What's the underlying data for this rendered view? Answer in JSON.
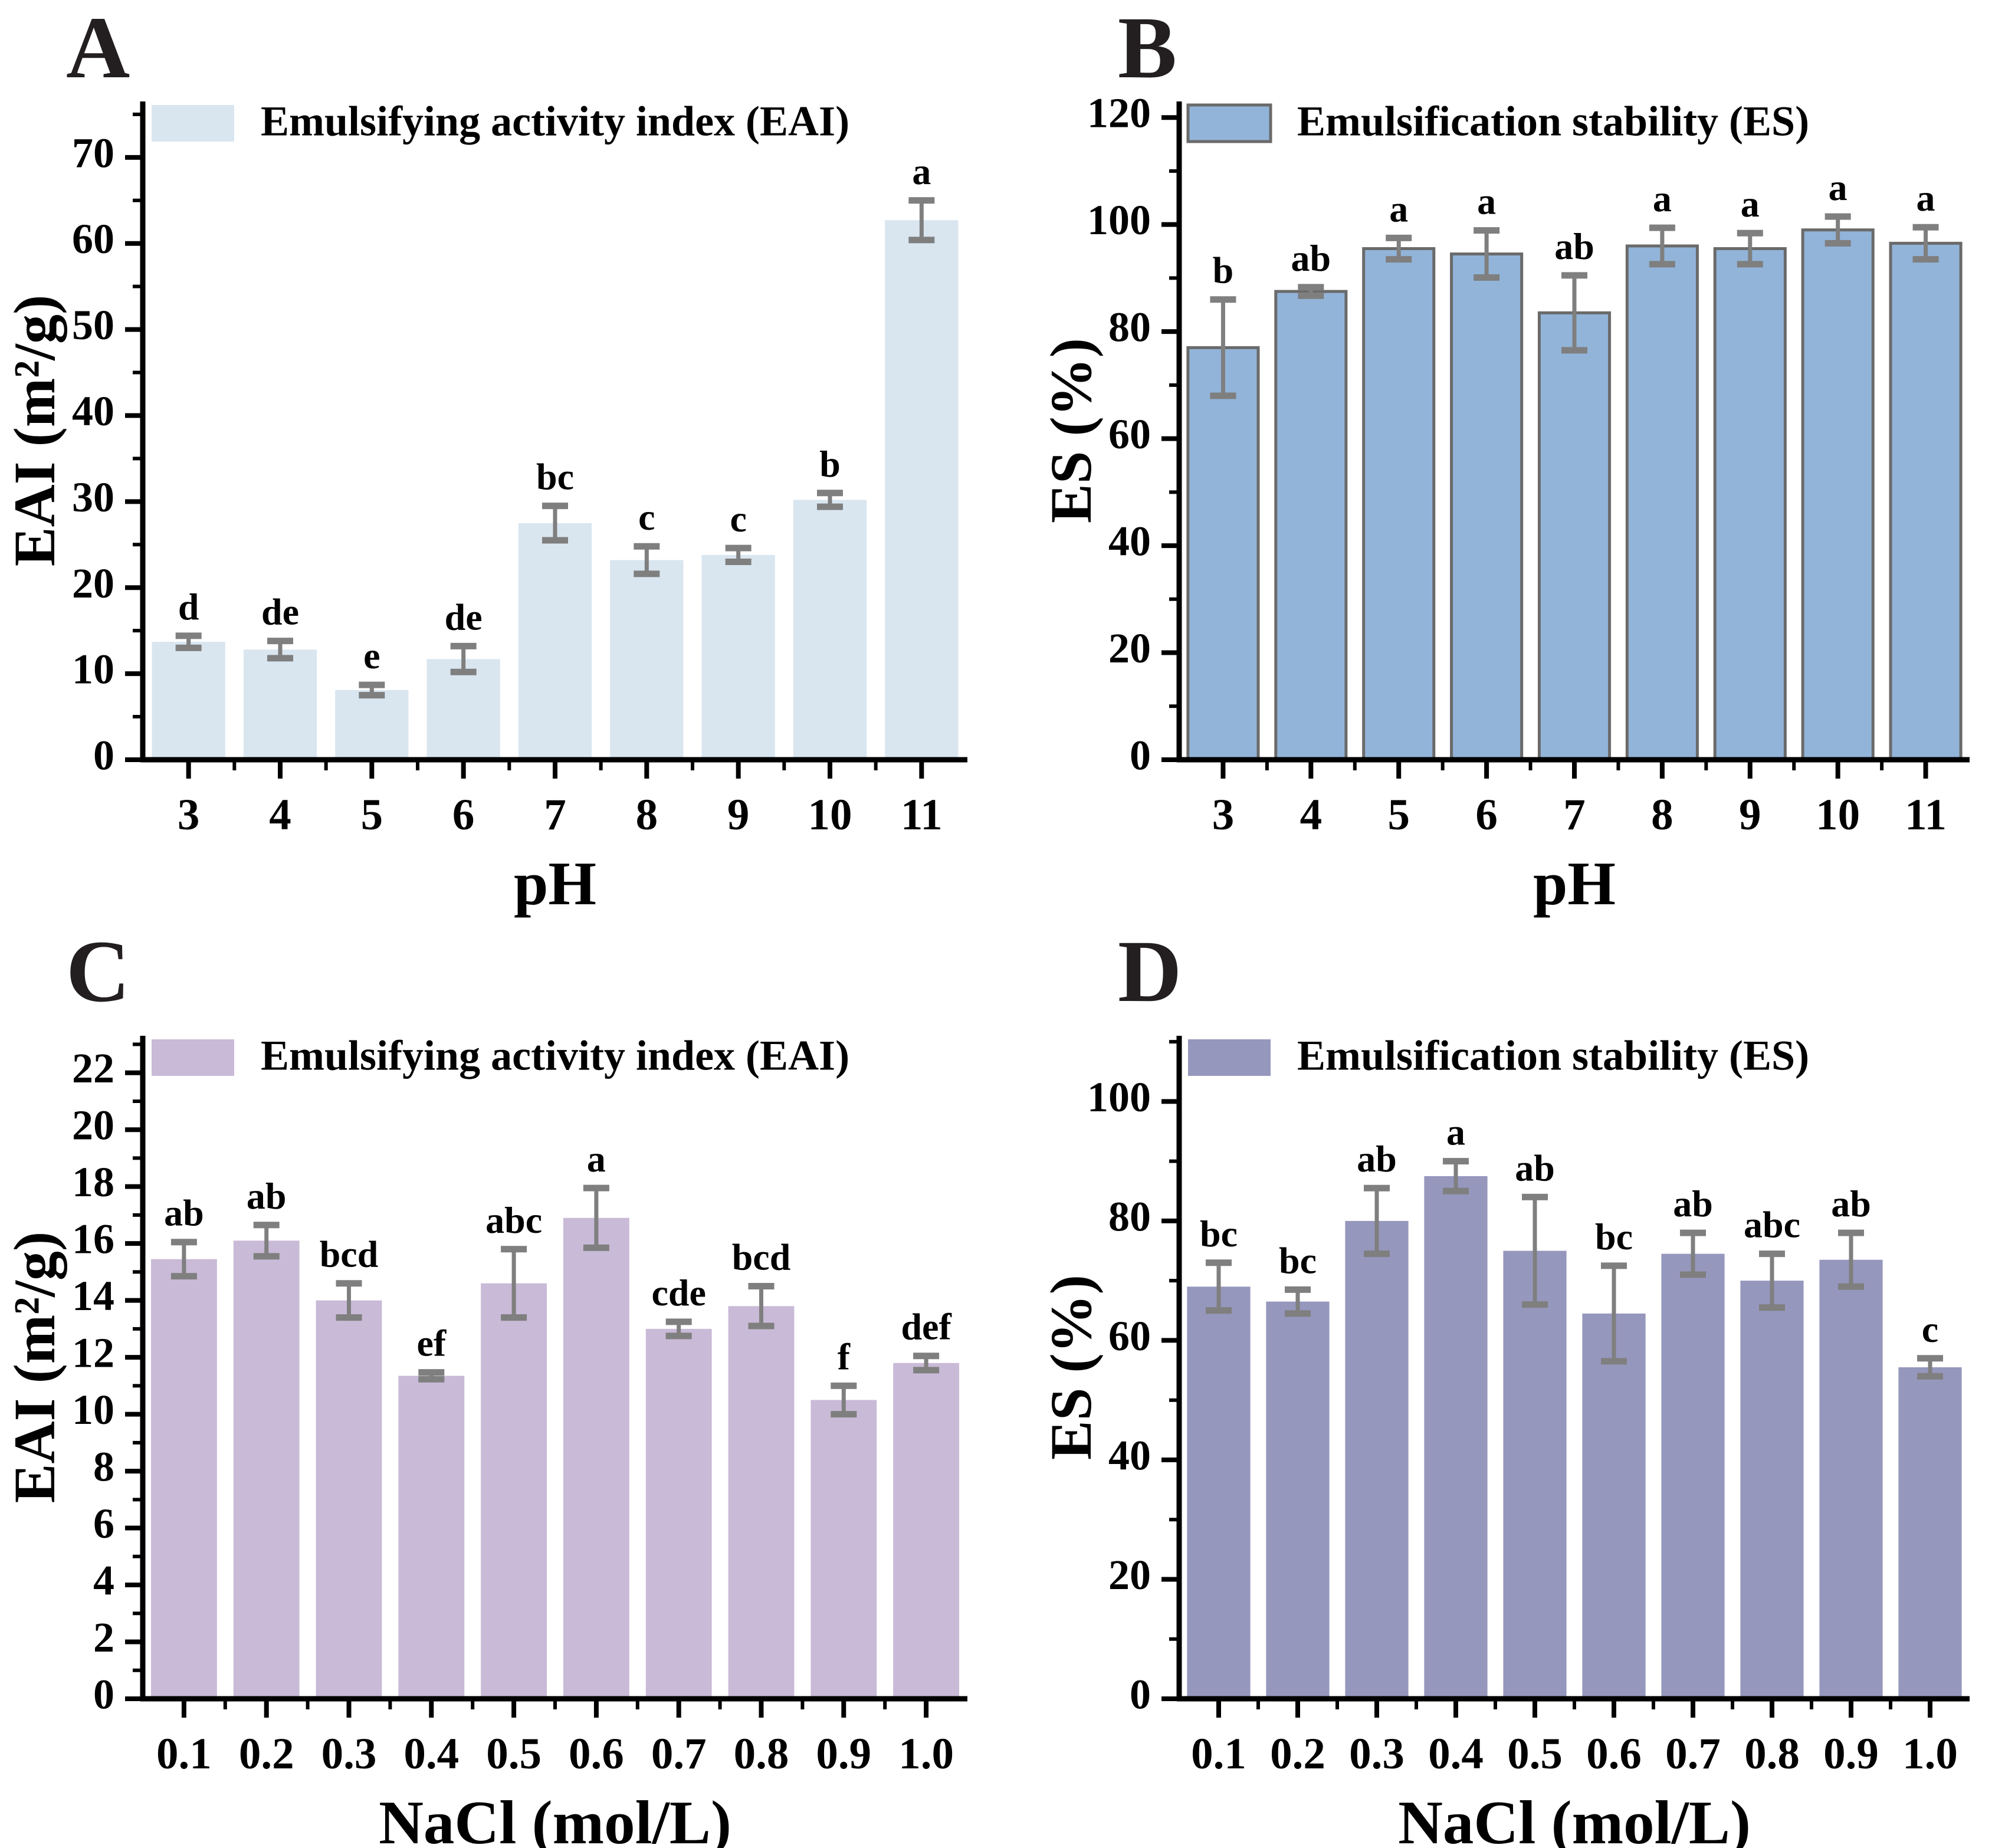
{
  "figure_background": "#ffffff",
  "error_bar_color": "#7f7f7f",
  "axis_color": "#000000",
  "chart_data": [
    {
      "type": "bar",
      "label": "A",
      "legend": "Emulsifying activity index (EAI)",
      "xlabel": "pH",
      "ylabel": "EAI (m²/g)",
      "bar_fill": "#d9e6f0",
      "bar_stroke": "none",
      "categories": [
        "3",
        "4",
        "5",
        "6",
        "7",
        "8",
        "9",
        "10",
        "11"
      ],
      "values": [
        13.7,
        12.8,
        8.1,
        11.7,
        27.5,
        23.2,
        23.8,
        30.2,
        62.7
      ],
      "errors": [
        0.7,
        1.0,
        0.6,
        1.5,
        2.0,
        1.6,
        0.8,
        0.8,
        2.3
      ],
      "sig_letters": [
        "d",
        "de",
        "e",
        "de",
        "bc",
        "c",
        "c",
        "b",
        "a"
      ],
      "ylim": [
        0,
        76.5
      ],
      "ytick_step": 10,
      "yminor_step": 5,
      "ytick_max": 70,
      "legend_border": "none",
      "grid": false,
      "legend_position": "top-left"
    },
    {
      "type": "bar",
      "label": "B",
      "legend": "Emulsification stability (ES)",
      "xlabel": "pH",
      "ylabel": "ES (%)",
      "bar_fill": "#92b4d9",
      "bar_stroke": "#6a6a6a",
      "categories": [
        "3",
        "4",
        "5",
        "6",
        "7",
        "8",
        "9",
        "10",
        "11"
      ],
      "values": [
        77,
        87.5,
        95.5,
        94.5,
        83.5,
        96,
        95.5,
        99,
        96.5
      ],
      "errors": [
        9,
        0.8,
        2,
        4.4,
        7,
        3.4,
        2.9,
        2.5,
        3
      ],
      "sig_letters": [
        "b",
        "ab",
        "a",
        "a",
        "ab",
        "a",
        "a",
        "a",
        "a"
      ],
      "ylim": [
        0,
        123
      ],
      "ytick_step": 20,
      "yminor_step": 10,
      "ytick_max": 120,
      "legend_border": "#6a6a6a",
      "grid": false,
      "legend_position": "top-left"
    },
    {
      "type": "bar",
      "label": "C",
      "legend": "Emulsifying activity index (EAI)",
      "xlabel": "NaCl (mol/L)",
      "ylabel": "EAI (m²/g)",
      "bar_fill": "#c9bad7",
      "bar_stroke": "none",
      "categories": [
        "0.1",
        "0.2",
        "0.3",
        "0.4",
        "0.5",
        "0.6",
        "0.7",
        "0.8",
        "0.9",
        "1.0"
      ],
      "values": [
        15.45,
        16.1,
        14.0,
        11.35,
        14.6,
        16.9,
        13.0,
        13.8,
        10.5,
        11.8
      ],
      "errors": [
        0.6,
        0.55,
        0.6,
        0.12,
        1.2,
        1.05,
        0.25,
        0.7,
        0.5,
        0.25
      ],
      "sig_letters": [
        "ab",
        "ab",
        "bcd",
        "ef",
        "abc",
        "a",
        "cde",
        "bcd",
        "f",
        "def"
      ],
      "ylim": [
        0,
        23.3
      ],
      "ytick_step": 2,
      "yminor_step": 1,
      "ytick_max": 22,
      "legend_border": "none",
      "grid": false,
      "legend_position": "top-left"
    },
    {
      "type": "bar",
      "label": "D",
      "legend": "Emulsification stability (ES)",
      "xlabel": "NaCl (mol/L)",
      "ylabel": "ES (%)",
      "bar_fill": "#9697bd",
      "bar_stroke": "none",
      "categories": [
        "0.1",
        "0.2",
        "0.3",
        "0.4",
        "0.5",
        "0.6",
        "0.7",
        "0.8",
        "0.9",
        "1.0"
      ],
      "values": [
        69,
        66.5,
        80,
        87.5,
        75,
        64.5,
        74.5,
        70,
        73.5,
        55.5
      ],
      "errors": [
        4,
        2,
        5.5,
        2.5,
        9,
        8,
        3.5,
        4.5,
        4.5,
        1.5
      ],
      "sig_letters": [
        "bc",
        "bc",
        "ab",
        "a",
        "ab",
        "bc",
        "ab",
        "abc",
        "ab",
        "c"
      ],
      "ylim": [
        0,
        111
      ],
      "ytick_step": 20,
      "yminor_step": 10,
      "ytick_max": 100,
      "legend_border": "none",
      "grid": false,
      "legend_position": "top-left"
    }
  ]
}
